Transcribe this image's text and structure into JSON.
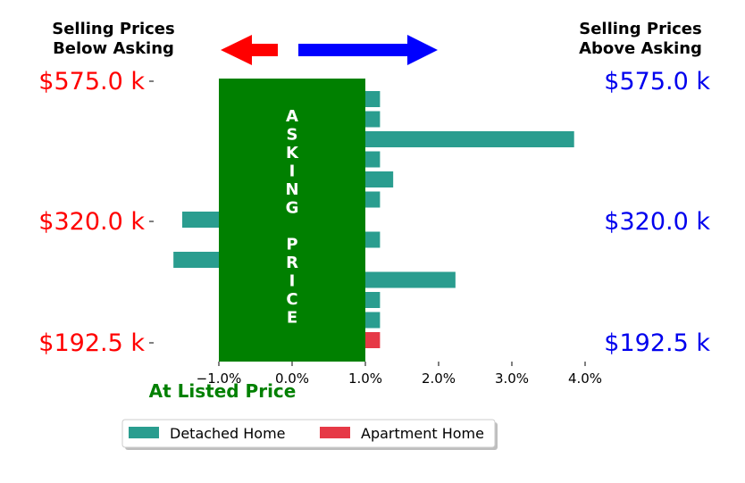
{
  "chart_data": {
    "type": "bar",
    "orientation": "horizontal",
    "headers": {
      "left": [
        "Selling Prices",
        "Below Asking"
      ],
      "right": [
        "Selling Prices",
        "Above Asking"
      ]
    },
    "y_price_labels": [
      "$575.0 k",
      "$320.0 k",
      "$192.5 k"
    ],
    "x_ticks": [
      "−1.0%",
      "0.0%",
      "1.0%",
      "2.0%",
      "3.0%",
      "4.0%"
    ],
    "xlim": [
      -2.0,
      4.0
    ],
    "x_annotation": "At Listed Price",
    "asking_band": {
      "from": -1.0,
      "to": 1.0,
      "text": [
        "A",
        "S",
        "K",
        "I",
        "N",
        "G",
        "",
        "P",
        "R",
        "I",
        "C",
        "E"
      ]
    },
    "series": [
      {
        "name": "Detached Home",
        "values": [
          1.2,
          1.2,
          3.85,
          1.2,
          1.38,
          1.2,
          -1.5,
          1.2,
          -1.62,
          2.23,
          1.2,
          1.2
        ]
      },
      {
        "name": "Apartment Home",
        "values": [
          null,
          null,
          null,
          null,
          null,
          null,
          null,
          null,
          null,
          null,
          null,
          null,
          1.2
        ]
      }
    ],
    "colors": {
      "detached": "#2a9d8f",
      "apartment": "#e63946",
      "asking_band": "#008000",
      "left_side": "#ff0000",
      "right_side": "#0000ee",
      "annotation": "#008000"
    },
    "legend_position": "bottom-center",
    "grid": false
  }
}
